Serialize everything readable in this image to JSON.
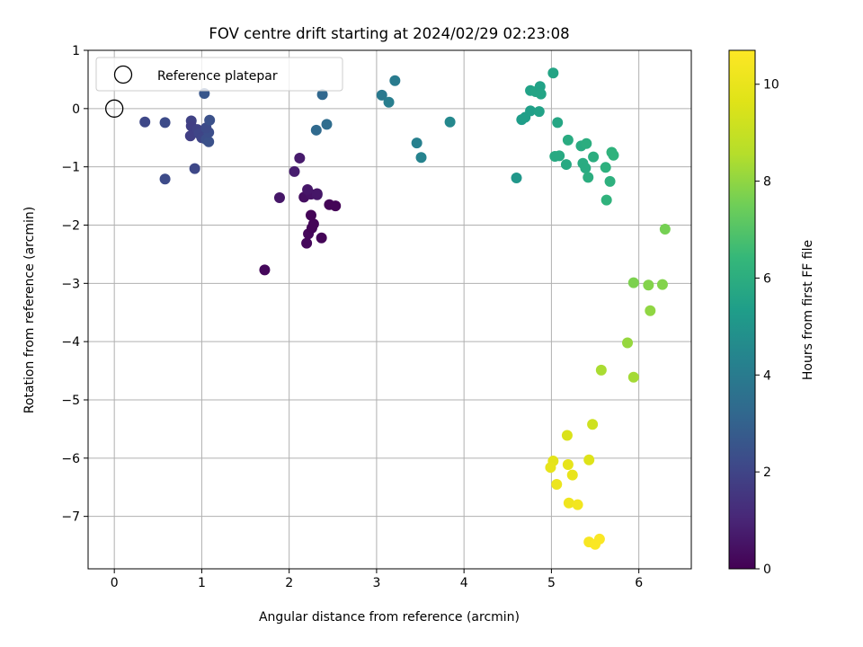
{
  "chart_data": {
    "type": "scatter",
    "title": "FOV centre drift starting at 2024/02/29 02:23:08",
    "xlabel": "Angular distance from reference (arcmin)",
    "ylabel": "Rotation from reference (arcmin)",
    "xlim": [
      -0.3,
      6.6
    ],
    "ylim": [
      -7.9,
      1.0
    ],
    "xticks": [
      0,
      1,
      2,
      3,
      4,
      5,
      6
    ],
    "yticks": [
      1,
      0,
      -1,
      -2,
      -3,
      -4,
      -5,
      -6,
      -7
    ],
    "grid": true,
    "legend": {
      "placement": "top-left",
      "entries": [
        "Reference platepar"
      ]
    },
    "reference_point": {
      "x": 0,
      "y": 0,
      "label": "Reference platepar"
    },
    "colorbar": {
      "label": "Hours from first FF file",
      "range": [
        0,
        10.7
      ],
      "ticks": [
        0,
        2,
        4,
        6,
        8,
        10
      ],
      "colormap": "viridis"
    },
    "points": [
      {
        "x": 1.72,
        "y": -2.77,
        "hours": 0.2
      },
      {
        "x": 2.2,
        "y": -2.31,
        "hours": 0.2
      },
      {
        "x": 2.37,
        "y": -2.22,
        "hours": 0.1
      },
      {
        "x": 2.22,
        "y": -2.15,
        "hours": 0.2
      },
      {
        "x": 2.26,
        "y": -2.05,
        "hours": 0.1
      },
      {
        "x": 2.28,
        "y": -1.98,
        "hours": 0.1
      },
      {
        "x": 2.25,
        "y": -1.83,
        "hours": 0.1
      },
      {
        "x": 2.46,
        "y": -1.65,
        "hours": 0.1
      },
      {
        "x": 2.53,
        "y": -1.67,
        "hours": 0.1
      },
      {
        "x": 1.89,
        "y": -1.53,
        "hours": 0.6
      },
      {
        "x": 2.17,
        "y": -1.52,
        "hours": 0.4
      },
      {
        "x": 2.25,
        "y": -1.47,
        "hours": 0.5
      },
      {
        "x": 2.32,
        "y": -1.48,
        "hours": 0.6
      },
      {
        "x": 2.21,
        "y": -1.39,
        "hours": 0.6
      },
      {
        "x": 2.32,
        "y": -1.46,
        "hours": 0.6
      },
      {
        "x": 2.06,
        "y": -1.08,
        "hours": 0.8
      },
      {
        "x": 2.12,
        "y": -0.85,
        "hours": 0.7
      },
      {
        "x": 0.35,
        "y": -0.23,
        "hours": 2.1
      },
      {
        "x": 0.58,
        "y": -0.24,
        "hours": 2.2
      },
      {
        "x": 0.58,
        "y": -1.21,
        "hours": 2.2
      },
      {
        "x": 0.92,
        "y": -1.03,
        "hours": 2.1
      },
      {
        "x": 0.88,
        "y": -0.21,
        "hours": 1.9
      },
      {
        "x": 0.88,
        "y": -0.3,
        "hours": 1.8
      },
      {
        "x": 0.87,
        "y": -0.47,
        "hours": 1.8
      },
      {
        "x": 0.95,
        "y": -0.36,
        "hours": 1.9
      },
      {
        "x": 0.97,
        "y": -0.43,
        "hours": 2.0
      },
      {
        "x": 1.0,
        "y": -0.5,
        "hours": 2.0
      },
      {
        "x": 1.05,
        "y": -0.53,
        "hours": 2.3
      },
      {
        "x": 1.08,
        "y": -0.57,
        "hours": 2.4
      },
      {
        "x": 1.08,
        "y": -0.41,
        "hours": 2.3
      },
      {
        "x": 1.05,
        "y": -0.33,
        "hours": 2.2
      },
      {
        "x": 1.09,
        "y": -0.2,
        "hours": 2.4
      },
      {
        "x": 1.03,
        "y": 0.26,
        "hours": 2.6
      },
      {
        "x": 2.31,
        "y": -0.37,
        "hours": 3.3
      },
      {
        "x": 2.43,
        "y": -0.27,
        "hours": 3.4
      },
      {
        "x": 2.38,
        "y": 0.24,
        "hours": 3.2
      },
      {
        "x": 3.06,
        "y": 0.23,
        "hours": 3.9
      },
      {
        "x": 3.14,
        "y": 0.11,
        "hours": 4.1
      },
      {
        "x": 3.21,
        "y": 0.48,
        "hours": 4.0
      },
      {
        "x": 3.46,
        "y": -0.59,
        "hours": 4.2
      },
      {
        "x": 3.51,
        "y": -0.84,
        "hours": 4.3
      },
      {
        "x": 3.84,
        "y": -0.23,
        "hours": 4.5
      },
      {
        "x": 4.6,
        "y": -1.19,
        "hours": 5.1
      },
      {
        "x": 4.66,
        "y": -0.19,
        "hours": 5.3
      },
      {
        "x": 4.7,
        "y": -0.15,
        "hours": 5.4
      },
      {
        "x": 4.76,
        "y": -0.04,
        "hours": 5.4
      },
      {
        "x": 4.86,
        "y": -0.05,
        "hours": 5.5
      },
      {
        "x": 4.76,
        "y": 0.31,
        "hours": 5.5
      },
      {
        "x": 4.82,
        "y": 0.29,
        "hours": 5.6
      },
      {
        "x": 4.87,
        "y": 0.38,
        "hours": 5.5
      },
      {
        "x": 4.88,
        "y": 0.25,
        "hours": 5.6
      },
      {
        "x": 5.02,
        "y": 0.61,
        "hours": 5.6
      },
      {
        "x": 5.07,
        "y": -0.24,
        "hours": 5.7
      },
      {
        "x": 5.04,
        "y": -0.82,
        "hours": 5.8
      },
      {
        "x": 5.09,
        "y": -0.81,
        "hours": 5.8
      },
      {
        "x": 5.17,
        "y": -0.96,
        "hours": 5.8
      },
      {
        "x": 5.19,
        "y": -0.54,
        "hours": 5.9
      },
      {
        "x": 5.34,
        "y": -0.64,
        "hours": 5.9
      },
      {
        "x": 5.4,
        "y": -0.6,
        "hours": 6.0
      },
      {
        "x": 5.36,
        "y": -0.94,
        "hours": 5.9
      },
      {
        "x": 5.39,
        "y": -1.02,
        "hours": 5.9
      },
      {
        "x": 5.42,
        "y": -1.18,
        "hours": 6.0
      },
      {
        "x": 5.48,
        "y": -0.83,
        "hours": 6.0
      },
      {
        "x": 5.62,
        "y": -1.01,
        "hours": 6.1
      },
      {
        "x": 5.63,
        "y": -1.57,
        "hours": 6.2
      },
      {
        "x": 5.67,
        "y": -1.25,
        "hours": 6.1
      },
      {
        "x": 5.69,
        "y": -0.75,
        "hours": 6.2
      },
      {
        "x": 5.71,
        "y": -0.8,
        "hours": 6.2
      },
      {
        "x": 6.3,
        "y": -2.07,
        "hours": 7.6
      },
      {
        "x": 5.94,
        "y": -2.99,
        "hours": 7.7
      },
      {
        "x": 6.11,
        "y": -3.03,
        "hours": 7.8
      },
      {
        "x": 6.27,
        "y": -3.02,
        "hours": 7.8
      },
      {
        "x": 6.13,
        "y": -3.47,
        "hours": 8.0
      },
      {
        "x": 5.87,
        "y": -4.02,
        "hours": 8.1
      },
      {
        "x": 5.57,
        "y": -4.49,
        "hours": 8.4
      },
      {
        "x": 5.94,
        "y": -4.61,
        "hours": 8.3
      },
      {
        "x": 5.47,
        "y": -5.42,
        "hours": 9.2
      },
      {
        "x": 5.18,
        "y": -5.61,
        "hours": 9.5
      },
      {
        "x": 5.43,
        "y": -6.03,
        "hours": 9.6
      },
      {
        "x": 5.02,
        "y": -6.05,
        "hours": 9.8
      },
      {
        "x": 4.99,
        "y": -6.16,
        "hours": 9.9
      },
      {
        "x": 5.19,
        "y": -6.11,
        "hours": 9.9
      },
      {
        "x": 5.24,
        "y": -6.29,
        "hours": 10.0
      },
      {
        "x": 5.06,
        "y": -6.45,
        "hours": 10.1
      },
      {
        "x": 5.2,
        "y": -6.77,
        "hours": 10.2
      },
      {
        "x": 5.3,
        "y": -6.8,
        "hours": 10.3
      },
      {
        "x": 5.43,
        "y": -7.44,
        "hours": 10.5
      },
      {
        "x": 5.5,
        "y": -7.48,
        "hours": 10.6
      },
      {
        "x": 5.55,
        "y": -7.39,
        "hours": 10.6
      }
    ]
  }
}
